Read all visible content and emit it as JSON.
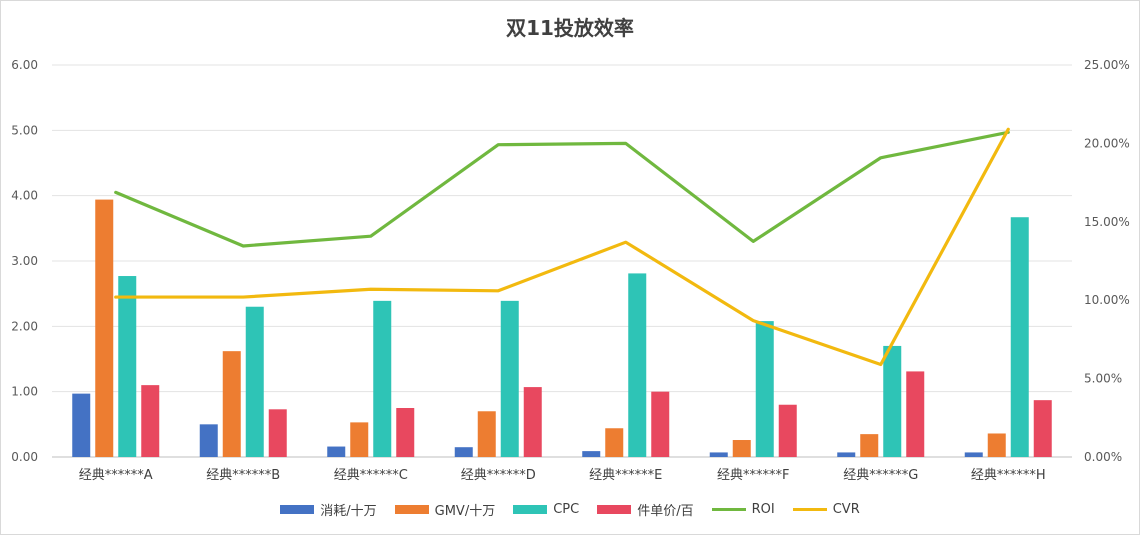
{
  "chart_data": {
    "type": "bar",
    "title": "双11投放效率",
    "categories": [
      "经典******A",
      "经典******B",
      "经典******C",
      "经典******D",
      "经典******E",
      "经典******F",
      "经典******G",
      "经典******H"
    ],
    "series": [
      {
        "name": "消耗/十万",
        "kind": "bar",
        "axis": "left",
        "color": "#4472C4",
        "values": [
          0.97,
          0.5,
          0.16,
          0.15,
          0.09,
          0.07,
          0.07,
          0.07
        ]
      },
      {
        "name": "GMV/十万",
        "kind": "bar",
        "axis": "left",
        "color": "#ED7D31",
        "values": [
          3.94,
          1.62,
          0.53,
          0.7,
          0.44,
          0.26,
          0.35,
          0.36
        ]
      },
      {
        "name": "CPC",
        "kind": "bar",
        "axis": "left",
        "color": "#2EC4B6",
        "values": [
          2.77,
          2.3,
          2.39,
          2.39,
          2.81,
          2.08,
          1.7,
          3.67
        ]
      },
      {
        "name": "件单价/百",
        "kind": "bar",
        "axis": "left",
        "color": "#E8485F",
        "values": [
          1.1,
          0.73,
          0.75,
          1.07,
          1.0,
          0.8,
          1.31,
          0.87
        ]
      },
      {
        "name": "ROI",
        "kind": "line",
        "axis": "left",
        "color": "#70B83F",
        "values": [
          4.05,
          3.23,
          3.38,
          4.78,
          4.8,
          3.3,
          4.58,
          4.97
        ]
      },
      {
        "name": "CVR",
        "kind": "line",
        "axis": "right",
        "color": "#F2B90F",
        "values": [
          0.102,
          0.102,
          0.107,
          0.106,
          0.137,
          0.087,
          0.059,
          0.209
        ]
      }
    ],
    "y_left": {
      "min": 0,
      "max": 6,
      "ticks": [
        "0.00",
        "1.00",
        "2.00",
        "3.00",
        "4.00",
        "5.00",
        "6.00"
      ]
    },
    "y_right": {
      "min": 0,
      "max": 0.25,
      "ticks": [
        "0.00%",
        "5.00%",
        "10.00%",
        "15.00%",
        "20.00%",
        "25.00%"
      ]
    },
    "grid": true,
    "legend_position": "bottom"
  }
}
